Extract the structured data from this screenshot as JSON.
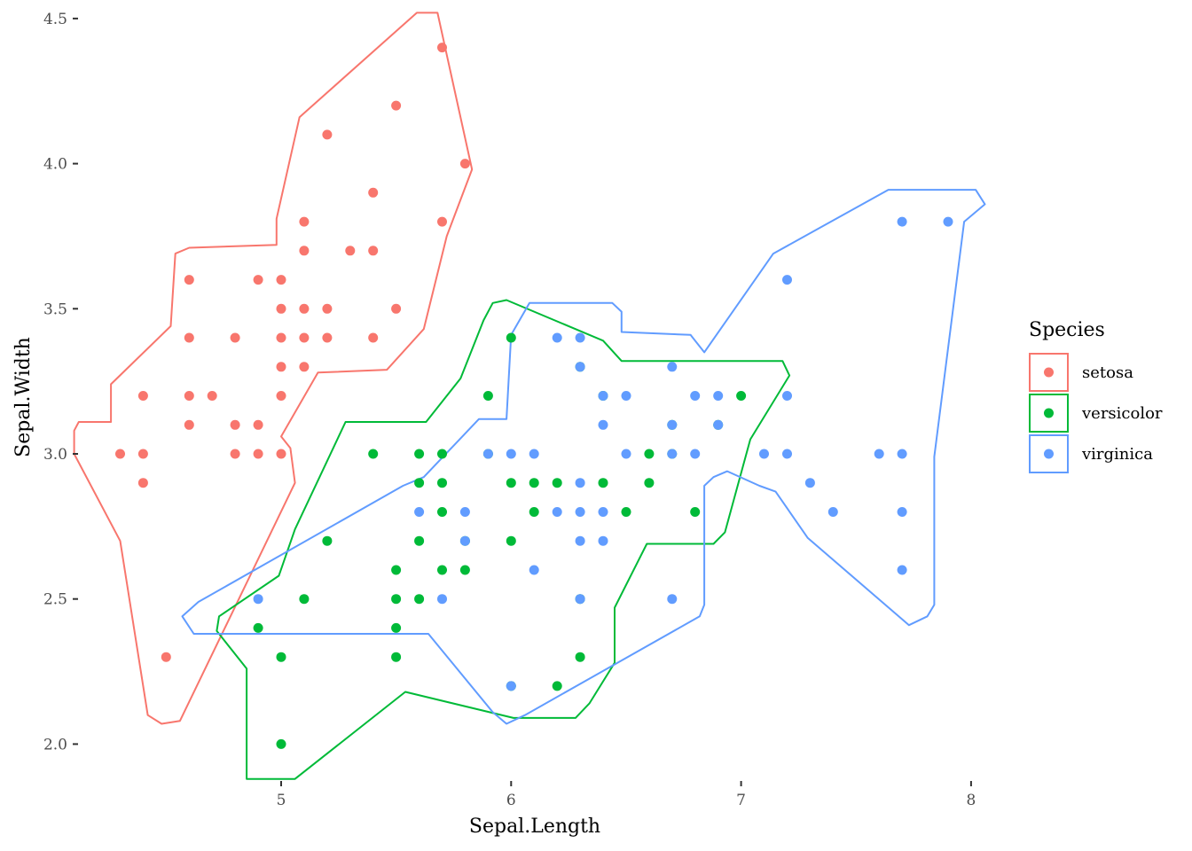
{
  "chart_data": {
    "type": "scatter",
    "xlabel": "Sepal.Length",
    "ylabel": "Sepal.Width",
    "xlim": [
      4.1,
      8.2
    ],
    "ylim": [
      1.88,
      4.52
    ],
    "x_ticks": [
      5,
      6,
      7,
      8
    ],
    "y_ticks": [
      2.0,
      2.5,
      3.0,
      3.5,
      4.0,
      4.5
    ],
    "y_tick_labels": [
      "2.0",
      "2.5",
      "3.0",
      "3.5",
      "4.0",
      "4.5"
    ],
    "grid": false,
    "legend": {
      "title": "Species",
      "placement": "right"
    },
    "series": [
      {
        "name": "setosa",
        "color": "#F8766D",
        "points": [
          [
            4.3,
            3.0
          ],
          [
            4.4,
            3.0
          ],
          [
            4.4,
            2.9
          ],
          [
            4.4,
            3.2
          ],
          [
            4.5,
            2.3
          ],
          [
            4.6,
            3.1
          ],
          [
            4.6,
            3.2
          ],
          [
            4.6,
            3.4
          ],
          [
            4.6,
            3.6
          ],
          [
            4.7,
            3.2
          ],
          [
            4.8,
            3.0
          ],
          [
            4.8,
            3.1
          ],
          [
            4.8,
            3.4
          ],
          [
            4.9,
            3.0
          ],
          [
            4.9,
            3.1
          ],
          [
            4.9,
            3.6
          ],
          [
            5.0,
            3.0
          ],
          [
            5.0,
            3.2
          ],
          [
            5.0,
            3.3
          ],
          [
            5.0,
            3.4
          ],
          [
            5.0,
            3.5
          ],
          [
            5.0,
            3.6
          ],
          [
            5.1,
            3.3
          ],
          [
            5.1,
            3.4
          ],
          [
            5.1,
            3.5
          ],
          [
            5.1,
            3.7
          ],
          [
            5.1,
            3.8
          ],
          [
            5.2,
            3.4
          ],
          [
            5.2,
            3.5
          ],
          [
            5.2,
            4.1
          ],
          [
            5.3,
            3.7
          ],
          [
            5.4,
            3.4
          ],
          [
            5.4,
            3.7
          ],
          [
            5.4,
            3.9
          ],
          [
            5.5,
            3.5
          ],
          [
            5.5,
            4.2
          ],
          [
            5.7,
            3.8
          ],
          [
            5.7,
            4.4
          ],
          [
            5.8,
            4.0
          ]
        ],
        "hull": [
          [
            4.3,
            2.7
          ],
          [
            4.32,
            2.6
          ],
          [
            4.42,
            2.1
          ],
          [
            4.48,
            2.07
          ],
          [
            4.56,
            2.08
          ],
          [
            5.06,
            2.9
          ],
          [
            5.04,
            3.02
          ],
          [
            5.0,
            3.06
          ],
          [
            5.16,
            3.28
          ],
          [
            5.46,
            3.29
          ],
          [
            5.62,
            3.43
          ],
          [
            5.72,
            3.75
          ],
          [
            5.83,
            3.98
          ],
          [
            5.68,
            4.52
          ],
          [
            5.59,
            4.52
          ],
          [
            5.08,
            4.16
          ],
          [
            4.98,
            3.81
          ],
          [
            4.98,
            3.72
          ],
          [
            4.6,
            3.71
          ],
          [
            4.54,
            3.69
          ],
          [
            4.52,
            3.44
          ],
          [
            4.26,
            3.24
          ],
          [
            4.26,
            3.11
          ],
          [
            4.12,
            3.11
          ],
          [
            4.1,
            3.08
          ],
          [
            4.1,
            3.0
          ]
        ]
      },
      {
        "name": "versicolor",
        "color": "#00BA38",
        "points": [
          [
            4.9,
            2.4
          ],
          [
            5.0,
            2.0
          ],
          [
            5.0,
            2.3
          ],
          [
            5.1,
            2.5
          ],
          [
            5.2,
            2.7
          ],
          [
            5.4,
            3.0
          ],
          [
            5.5,
            2.3
          ],
          [
            5.5,
            2.4
          ],
          [
            5.5,
            2.5
          ],
          [
            5.5,
            2.6
          ],
          [
            5.6,
            2.5
          ],
          [
            5.6,
            2.7
          ],
          [
            5.6,
            2.9
          ],
          [
            5.6,
            3.0
          ],
          [
            5.7,
            2.6
          ],
          [
            5.7,
            2.8
          ],
          [
            5.7,
            2.9
          ],
          [
            5.7,
            3.0
          ],
          [
            5.8,
            2.6
          ],
          [
            5.8,
            2.7
          ],
          [
            5.9,
            3.0
          ],
          [
            5.9,
            3.2
          ],
          [
            6.0,
            2.2
          ],
          [
            6.0,
            2.7
          ],
          [
            6.0,
            2.9
          ],
          [
            6.0,
            3.4
          ],
          [
            6.1,
            2.8
          ],
          [
            6.1,
            2.9
          ],
          [
            6.2,
            2.2
          ],
          [
            6.2,
            2.9
          ],
          [
            6.3,
            2.3
          ],
          [
            6.3,
            2.5
          ],
          [
            6.3,
            3.3
          ],
          [
            6.4,
            2.9
          ],
          [
            6.4,
            3.2
          ],
          [
            6.5,
            2.8
          ],
          [
            6.6,
            2.9
          ],
          [
            6.6,
            3.0
          ],
          [
            6.7,
            3.0
          ],
          [
            6.7,
            3.1
          ],
          [
            6.8,
            2.8
          ],
          [
            6.9,
            3.1
          ],
          [
            7.0,
            3.2
          ]
        ],
        "hull": [
          [
            4.85,
            1.88
          ],
          [
            4.85,
            2.26
          ],
          [
            4.72,
            2.39
          ],
          [
            4.73,
            2.44
          ],
          [
            4.99,
            2.58
          ],
          [
            5.06,
            2.74
          ],
          [
            5.28,
            3.11
          ],
          [
            5.63,
            3.11
          ],
          [
            5.78,
            3.26
          ],
          [
            5.88,
            3.46
          ],
          [
            5.92,
            3.52
          ],
          [
            5.98,
            3.53
          ],
          [
            6.4,
            3.39
          ],
          [
            6.48,
            3.32
          ],
          [
            7.18,
            3.32
          ],
          [
            7.21,
            3.27
          ],
          [
            7.04,
            3.05
          ],
          [
            6.93,
            2.73
          ],
          [
            6.88,
            2.69
          ],
          [
            6.59,
            2.69
          ],
          [
            6.45,
            2.47
          ],
          [
            6.45,
            2.28
          ],
          [
            6.34,
            2.14
          ],
          [
            6.28,
            2.09
          ],
          [
            6.01,
            2.09
          ],
          [
            5.54,
            2.18
          ],
          [
            5.06,
            1.88
          ]
        ]
      },
      {
        "name": "virginica",
        "color": "#619CFF",
        "points": [
          [
            4.9,
            2.5
          ],
          [
            5.6,
            2.8
          ],
          [
            5.7,
            2.5
          ],
          [
            5.8,
            2.7
          ],
          [
            5.8,
            2.8
          ],
          [
            5.9,
            3.0
          ],
          [
            6.0,
            2.2
          ],
          [
            6.0,
            3.0
          ],
          [
            6.1,
            2.6
          ],
          [
            6.1,
            3.0
          ],
          [
            6.2,
            2.8
          ],
          [
            6.2,
            3.4
          ],
          [
            6.3,
            2.5
          ],
          [
            6.3,
            2.7
          ],
          [
            6.3,
            2.8
          ],
          [
            6.3,
            2.9
          ],
          [
            6.3,
            3.3
          ],
          [
            6.3,
            3.4
          ],
          [
            6.4,
            2.7
          ],
          [
            6.4,
            2.8
          ],
          [
            6.4,
            3.1
          ],
          [
            6.4,
            3.2
          ],
          [
            6.5,
            3.0
          ],
          [
            6.5,
            3.2
          ],
          [
            6.7,
            2.5
          ],
          [
            6.7,
            3.0
          ],
          [
            6.7,
            3.1
          ],
          [
            6.7,
            3.3
          ],
          [
            6.8,
            3.0
          ],
          [
            6.8,
            3.2
          ],
          [
            6.9,
            3.1
          ],
          [
            6.9,
            3.2
          ],
          [
            7.1,
            3.0
          ],
          [
            7.2,
            3.0
          ],
          [
            7.2,
            3.2
          ],
          [
            7.2,
            3.6
          ],
          [
            7.3,
            2.9
          ],
          [
            7.4,
            2.8
          ],
          [
            7.6,
            3.0
          ],
          [
            7.7,
            2.6
          ],
          [
            7.7,
            2.8
          ],
          [
            7.7,
            3.0
          ],
          [
            7.7,
            3.8
          ],
          [
            7.9,
            3.8
          ]
        ],
        "hull": [
          [
            4.62,
            2.38
          ],
          [
            5.64,
            2.38
          ],
          [
            5.92,
            2.11
          ],
          [
            5.98,
            2.07
          ],
          [
            6.06,
            2.1
          ],
          [
            6.82,
            2.44
          ],
          [
            6.84,
            2.48
          ],
          [
            6.84,
            2.89
          ],
          [
            6.88,
            2.92
          ],
          [
            6.94,
            2.94
          ],
          [
            7.08,
            2.89
          ],
          [
            7.15,
            2.87
          ],
          [
            7.29,
            2.71
          ],
          [
            7.73,
            2.41
          ],
          [
            7.81,
            2.44
          ],
          [
            7.84,
            2.48
          ],
          [
            7.84,
            2.99
          ],
          [
            7.97,
            3.8
          ],
          [
            8.06,
            3.86
          ],
          [
            8.02,
            3.91
          ],
          [
            7.64,
            3.91
          ],
          [
            7.14,
            3.69
          ],
          [
            6.84,
            3.35
          ],
          [
            6.78,
            3.41
          ],
          [
            6.48,
            3.42
          ],
          [
            6.48,
            3.49
          ],
          [
            6.44,
            3.52
          ],
          [
            6.08,
            3.52
          ],
          [
            6.0,
            3.41
          ],
          [
            5.98,
            3.12
          ],
          [
            5.86,
            3.12
          ],
          [
            5.62,
            2.92
          ],
          [
            5.53,
            2.89
          ],
          [
            4.64,
            2.49
          ],
          [
            4.57,
            2.44
          ]
        ]
      }
    ]
  }
}
